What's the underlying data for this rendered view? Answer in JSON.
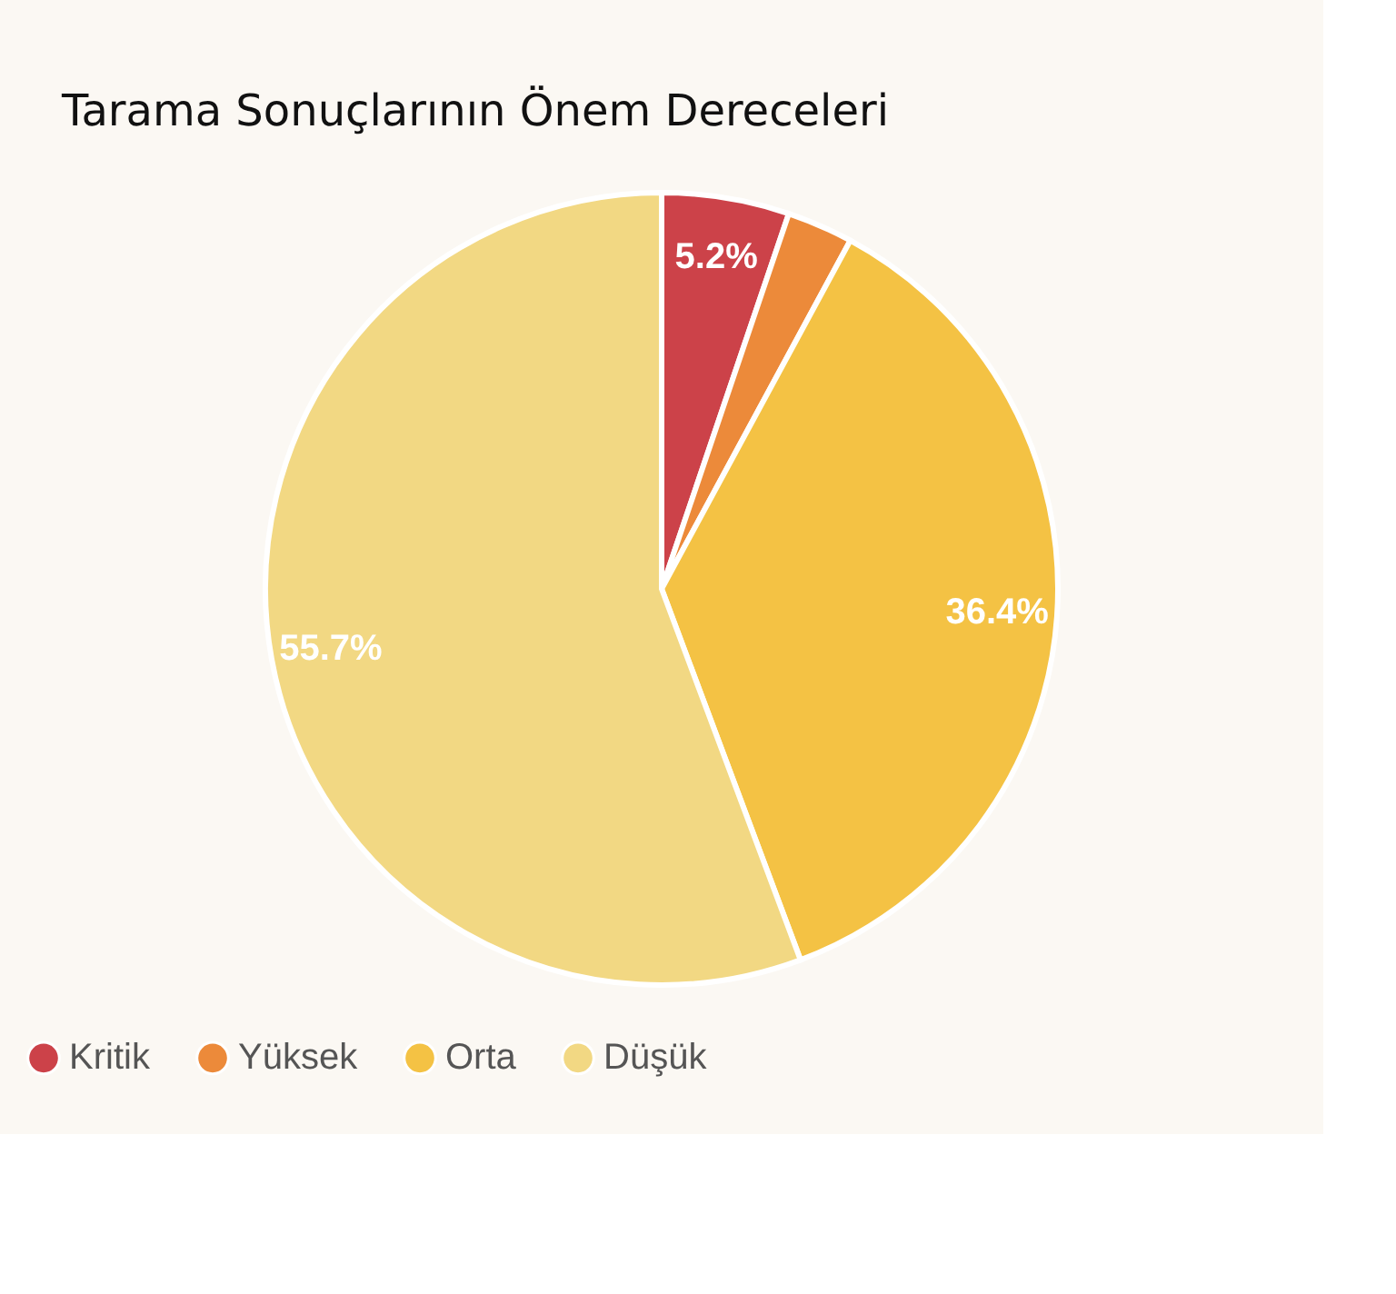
{
  "chart_data": {
    "type": "pie",
    "title": "Tarama Sonuçlarının Önem Dereceleri",
    "categories": [
      "Kritik",
      "Yüksek",
      "Orta",
      "Düşük"
    ],
    "values": [
      5.2,
      2.7,
      36.4,
      55.7
    ],
    "value_labels": [
      "5.2%",
      null,
      "36.4%",
      "55.7%"
    ],
    "colors": [
      "#cc4249",
      "#ec8a3a",
      "#f4c244",
      "#f2d883"
    ],
    "legend": "bottom"
  }
}
